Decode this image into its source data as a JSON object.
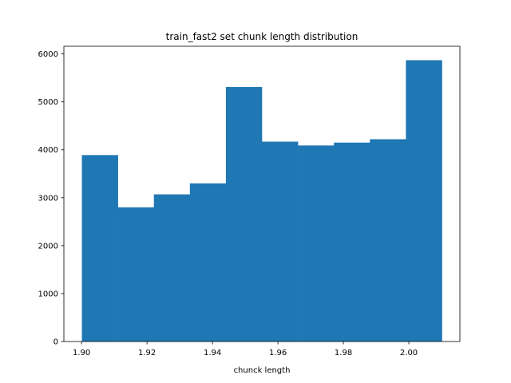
{
  "chart_data": {
    "type": "bar",
    "title": "train_fast2 set chunk length distribution",
    "xlabel": "chunck length",
    "ylabel": "",
    "bin_edges": [
      1.9001,
      1.9111,
      1.9221,
      1.9331,
      1.9441,
      1.9551,
      1.9661,
      1.9771,
      1.9881,
      1.9991,
      2.0101
    ],
    "values": [
      3890,
      2800,
      3070,
      3300,
      5310,
      4170,
      4090,
      4150,
      4220,
      5870
    ],
    "xlim": [
      1.8946,
      2.0156
    ],
    "ylim": [
      0,
      6160
    ],
    "xticks": [
      1.9,
      1.92,
      1.94,
      1.96,
      1.98,
      2.0
    ],
    "xtick_labels": [
      "1.90",
      "1.92",
      "1.94",
      "1.96",
      "1.98",
      "2.00"
    ],
    "yticks": [
      0,
      1000,
      2000,
      3000,
      4000,
      5000,
      6000
    ],
    "ytick_labels": [
      "0",
      "1000",
      "2000",
      "3000",
      "4000",
      "5000",
      "6000"
    ],
    "bar_color": "#1f77b4",
    "grid": false,
    "legend": "none"
  }
}
